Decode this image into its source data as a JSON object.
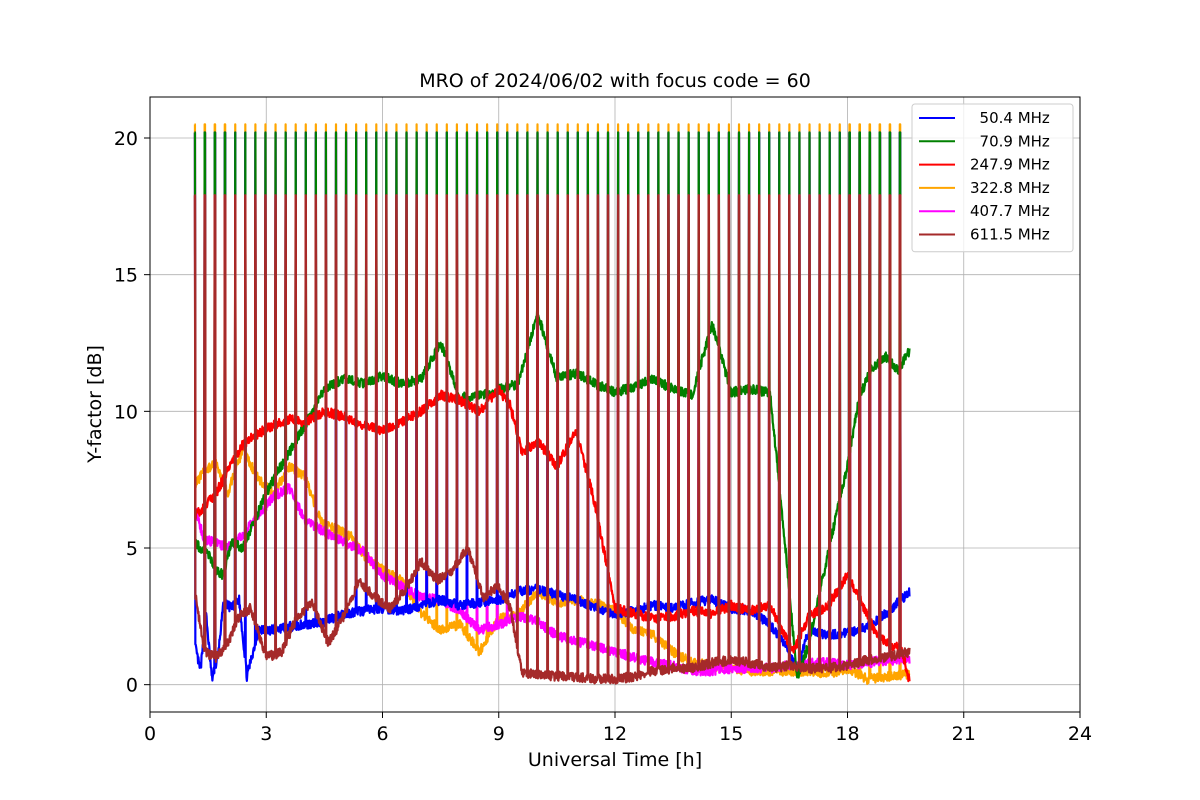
{
  "chart_data": {
    "type": "line",
    "title": "MRO of 2024/06/02 with focus code = 60",
    "xlabel": "Universal Time [h]",
    "ylabel": "Y-factor [dB]",
    "xlim": [
      0,
      24
    ],
    "ylim": [
      -1,
      21.5
    ],
    "xticks": [
      0,
      3,
      6,
      9,
      12,
      15,
      18,
      21,
      24
    ],
    "yticks": [
      0,
      5,
      10,
      15,
      20
    ],
    "grid": true,
    "legend_position": "top-right",
    "time_range": [
      1.15,
      19.6
    ],
    "calibration_period_h": 0.26,
    "calibration_spike_db": 20.5,
    "series": [
      {
        "name": "  50.4 MHz",
        "color": "#0000ff",
        "x": [
          1.15,
          1.3,
          1.45,
          1.6,
          1.75,
          1.9,
          2.1,
          2.3,
          2.5,
          2.8,
          3.1,
          3.5,
          4.0,
          4.5,
          5.0,
          5.5,
          6.0,
          6.5,
          7.0,
          7.5,
          8.0,
          8.5,
          9.0,
          9.5,
          10.0,
          10.5,
          11.0,
          11.5,
          12.0,
          12.5,
          13.0,
          13.5,
          14.0,
          14.5,
          15.0,
          15.5,
          16.0,
          16.4,
          16.7,
          17.0,
          17.5,
          18.0,
          18.5,
          19.0,
          19.6
        ],
        "values": [
          1.5,
          0.5,
          2.5,
          0.2,
          1.0,
          3.0,
          2.8,
          3.1,
          0.3,
          2.0,
          2.0,
          2.1,
          2.2,
          2.3,
          2.6,
          2.7,
          2.8,
          2.7,
          2.9,
          3.1,
          2.9,
          3.0,
          3.1,
          3.4,
          3.5,
          3.3,
          3.1,
          2.8,
          2.6,
          2.7,
          2.9,
          2.8,
          3.0,
          3.1,
          2.8,
          2.7,
          2.2,
          1.5,
          0.5,
          2.0,
          1.8,
          1.9,
          2.1,
          2.6,
          3.4
        ]
      },
      {
        "name": "  70.9 MHz",
        "color": "#008000",
        "x": [
          1.15,
          1.3,
          1.5,
          1.7,
          1.9,
          2.1,
          2.4,
          2.7,
          3.0,
          3.3,
          3.6,
          4.0,
          4.5,
          5.0,
          5.5,
          6.0,
          6.5,
          7.0,
          7.5,
          8.0,
          8.5,
          9.0,
          9.5,
          10.0,
          10.5,
          11.0,
          11.5,
          12.0,
          12.5,
          13.0,
          13.5,
          14.0,
          14.5,
          15.0,
          15.5,
          16.0,
          16.4,
          16.7,
          17.0,
          17.3,
          17.6,
          18.0,
          18.3,
          18.6,
          19.0,
          19.3,
          19.6
        ],
        "values": [
          5.2,
          5.0,
          4.8,
          4.2,
          4.0,
          5.2,
          5.0,
          6.0,
          7.0,
          7.8,
          8.5,
          9.5,
          10.8,
          11.2,
          11.0,
          11.3,
          11.0,
          11.2,
          12.5,
          10.5,
          10.6,
          10.8,
          11.0,
          13.6,
          11.2,
          11.4,
          11.0,
          10.7,
          10.9,
          11.2,
          10.8,
          10.6,
          13.2,
          10.7,
          10.8,
          10.7,
          5.0,
          0.2,
          1.5,
          3.5,
          5.5,
          8.0,
          10.5,
          11.5,
          12.0,
          11.5,
          12.2
        ]
      },
      {
        "name": "247.9 MHz",
        "color": "#ff0000",
        "x": [
          1.15,
          1.4,
          1.7,
          2.0,
          2.4,
          2.8,
          3.2,
          3.6,
          4.0,
          4.5,
          5.0,
          5.5,
          6.0,
          6.5,
          7.0,
          7.5,
          8.0,
          8.5,
          9.0,
          9.3,
          9.6,
          10.0,
          10.5,
          11.0,
          11.5,
          12.0,
          12.5,
          13.0,
          13.5,
          14.0,
          14.5,
          15.0,
          15.5,
          16.0,
          16.3,
          16.6,
          17.0,
          17.5,
          18.0,
          18.3,
          18.7,
          19.0,
          19.4,
          19.6
        ],
        "values": [
          6.2,
          6.5,
          7.0,
          7.8,
          8.8,
          9.2,
          9.5,
          9.7,
          9.6,
          10.0,
          9.8,
          9.5,
          9.3,
          9.6,
          10.0,
          10.6,
          10.4,
          10.0,
          10.8,
          10.2,
          8.5,
          8.9,
          8.0,
          9.3,
          6.5,
          2.8,
          2.6,
          2.4,
          2.5,
          2.7,
          2.6,
          2.9,
          2.7,
          2.9,
          2.0,
          1.2,
          2.5,
          2.9,
          4.0,
          3.2,
          2.0,
          1.5,
          1.3,
          0.1
        ]
      },
      {
        "name": "322.8 MHz",
        "color": "#ffa500",
        "x": [
          1.15,
          1.4,
          1.7,
          2.0,
          2.4,
          2.8,
          3.2,
          3.6,
          4.0,
          4.4,
          4.8,
          5.2,
          5.6,
          6.0,
          6.5,
          7.0,
          7.5,
          8.0,
          8.5,
          9.0,
          9.5,
          10.0,
          10.5,
          11.0,
          11.5,
          12.0,
          12.5,
          13.0,
          13.5,
          14.0,
          14.5,
          15.0,
          15.5,
          16.0,
          16.5,
          17.0,
          17.5,
          18.0,
          18.5,
          19.0,
          19.6
        ],
        "values": [
          7.3,
          7.8,
          8.1,
          7.0,
          8.6,
          7.5,
          7.0,
          8.0,
          7.6,
          6.0,
          5.7,
          5.4,
          4.6,
          4.2,
          3.8,
          2.6,
          2.0,
          2.2,
          1.2,
          2.4,
          2.6,
          3.4,
          3.0,
          3.1,
          3.0,
          2.7,
          2.0,
          1.8,
          1.2,
          0.8,
          0.7,
          0.6,
          0.5,
          0.5,
          0.5,
          0.5,
          0.4,
          0.6,
          0.2,
          0.3,
          0.4
        ]
      },
      {
        "name": "407.7 MHz",
        "color": "#ff00ff",
        "x": [
          1.15,
          1.4,
          1.7,
          2.0,
          2.4,
          2.8,
          3.2,
          3.6,
          4.0,
          4.5,
          5.0,
          5.5,
          6.0,
          6.5,
          7.0,
          7.5,
          8.0,
          8.5,
          9.0,
          9.5,
          10.0,
          10.5,
          11.0,
          11.5,
          12.0,
          12.5,
          13.0,
          13.5,
          14.0,
          14.5,
          15.0,
          15.5,
          16.0,
          16.5,
          17.0,
          17.5,
          18.0,
          18.5,
          19.0,
          19.6
        ],
        "values": [
          6.5,
          5.3,
          5.2,
          5.0,
          5.5,
          6.2,
          6.9,
          7.2,
          6.0,
          5.6,
          5.2,
          4.9,
          4.0,
          3.6,
          3.2,
          3.1,
          2.7,
          2.0,
          2.2,
          2.5,
          2.3,
          1.8,
          1.6,
          1.4,
          1.2,
          1.0,
          0.8,
          0.7,
          0.5,
          0.5,
          0.6,
          0.6,
          0.6,
          0.7,
          0.8,
          0.8,
          0.7,
          0.8,
          0.9,
          0.9
        ]
      },
      {
        "name": "611.5 MHz",
        "color": "#a52a2a",
        "x": [
          1.15,
          1.4,
          1.7,
          2.0,
          2.3,
          2.6,
          3.0,
          3.4,
          3.8,
          4.2,
          4.6,
          5.0,
          5.4,
          5.8,
          6.2,
          6.6,
          7.0,
          7.4,
          7.8,
          8.2,
          8.6,
          9.0,
          9.3,
          9.6,
          10.0,
          10.5,
          11.0,
          11.5,
          12.0,
          12.5,
          13.0,
          13.5,
          14.0,
          14.5,
          15.0,
          15.5,
          16.0,
          16.5,
          17.0,
          17.5,
          18.0,
          18.5,
          19.0,
          19.6
        ],
        "values": [
          3.5,
          1.2,
          1.0,
          1.5,
          2.5,
          2.8,
          1.0,
          1.2,
          2.5,
          3.0,
          1.5,
          2.5,
          3.8,
          3.2,
          2.8,
          3.5,
          4.5,
          3.8,
          4.2,
          5.0,
          3.2,
          3.6,
          2.8,
          0.4,
          0.4,
          0.3,
          0.3,
          0.2,
          0.2,
          0.3,
          0.5,
          0.6,
          0.6,
          0.8,
          0.9,
          0.8,
          0.6,
          0.7,
          0.6,
          0.6,
          0.7,
          0.9,
          1.0,
          1.2
        ]
      }
    ]
  }
}
